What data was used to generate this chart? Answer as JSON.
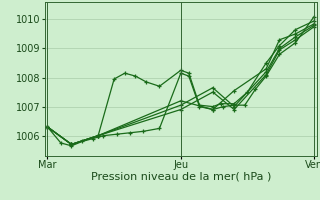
{
  "background_color": "#ceeece",
  "plot_bg_color": "#ceeece",
  "grid_color": "#aaccaa",
  "line_color": "#1a6b1a",
  "xlabel": "Pression niveau de la mer( hPa )",
  "xlabel_fontsize": 8,
  "tick_fontsize": 7,
  "ylim": [
    1005.3,
    1010.6
  ],
  "yticks": [
    1006,
    1007,
    1008,
    1009,
    1010
  ],
  "xtick_labels": [
    "Mar",
    "Jeu",
    "Ven"
  ],
  "xtick_positions": [
    0.0,
    0.5,
    1.0
  ],
  "vline_positions": [
    0.0,
    0.5,
    1.0
  ],
  "series": [
    [
      0.0,
      1006.3,
      0.05,
      1005.75,
      0.09,
      1005.65,
      0.13,
      1005.8,
      0.17,
      1005.9,
      0.21,
      1006.0,
      0.26,
      1006.05,
      0.31,
      1006.1,
      0.36,
      1006.15,
      0.42,
      1006.25,
      0.5,
      1008.15,
      0.53,
      1008.05,
      0.57,
      1007.0,
      0.62,
      1006.9,
      0.66,
      1007.0,
      0.7,
      1007.05,
      0.74,
      1007.05,
      0.78,
      1007.6,
      0.82,
      1008.05,
      0.87,
      1008.8,
      0.93,
      1009.2,
      1.0,
      1010.1
    ],
    [
      0.0,
      1006.3,
      0.09,
      1005.7,
      0.19,
      1006.0,
      0.25,
      1007.95,
      0.29,
      1008.15,
      0.33,
      1008.05,
      0.37,
      1007.85,
      0.42,
      1007.7,
      0.5,
      1008.25,
      0.53,
      1008.15,
      0.57,
      1007.05,
      0.62,
      1007.0,
      0.65,
      1007.1,
      0.7,
      1007.1,
      0.75,
      1007.5,
      0.82,
      1008.5,
      0.87,
      1009.1,
      0.93,
      1009.65,
      1.0,
      1009.95
    ],
    [
      0.0,
      1006.3,
      0.09,
      1005.7,
      0.19,
      1006.0,
      0.5,
      1007.2,
      0.62,
      1006.9,
      0.7,
      1007.55,
      0.82,
      1008.3,
      0.87,
      1009.3,
      0.93,
      1009.5,
      1.0,
      1009.85
    ],
    [
      0.0,
      1006.3,
      0.09,
      1005.7,
      0.19,
      1006.0,
      0.5,
      1007.05,
      0.62,
      1007.65,
      0.7,
      1007.0,
      0.82,
      1008.2,
      0.87,
      1009.0,
      0.93,
      1009.4,
      1.0,
      1009.8
    ],
    [
      0.0,
      1006.3,
      0.09,
      1005.7,
      0.19,
      1006.0,
      0.5,
      1006.9,
      0.62,
      1007.5,
      0.7,
      1006.9,
      0.82,
      1008.1,
      0.87,
      1008.95,
      0.93,
      1009.3,
      1.0,
      1009.75
    ]
  ]
}
